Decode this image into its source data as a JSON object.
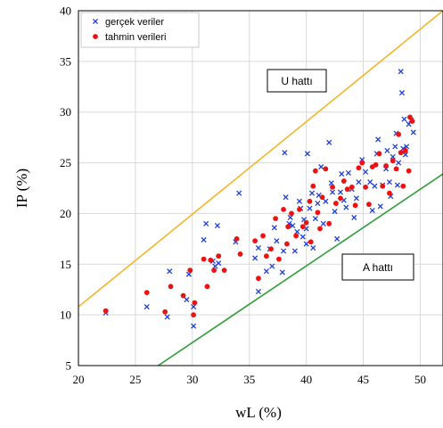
{
  "chart_data": {
    "type": "scatter",
    "xlabel": "wL (%)",
    "ylabel": "IP (%)",
    "xlim": [
      20,
      52
    ],
    "ylim": [
      5,
      40
    ],
    "x_ticks": [
      20,
      25,
      30,
      35,
      40,
      45,
      50
    ],
    "y_ticks": [
      5,
      10,
      15,
      20,
      25,
      30,
      35,
      40
    ],
    "grid": true,
    "legend_position": "top-left",
    "series": [
      {
        "name": "gerçek veriler",
        "marker": "x",
        "color": "#1f3fd6",
        "points": [
          [
            22.4,
            10.2
          ],
          [
            26,
            10.8
          ],
          [
            27.8,
            9.8
          ],
          [
            28,
            14.3
          ],
          [
            29.5,
            11.5
          ],
          [
            29.7,
            14
          ],
          [
            30.1,
            10.8
          ],
          [
            30.1,
            8.9
          ],
          [
            31,
            17.4
          ],
          [
            31.2,
            19
          ],
          [
            31.8,
            15.3
          ],
          [
            32.2,
            18.8
          ],
          [
            32.3,
            15.1
          ],
          [
            32,
            14.8
          ],
          [
            33.8,
            17.2
          ],
          [
            34.1,
            22
          ],
          [
            35.5,
            15.6
          ],
          [
            35.8,
            12.3
          ],
          [
            35.8,
            16.6
          ],
          [
            36.5,
            14.3
          ],
          [
            36.8,
            16.5
          ],
          [
            37,
            14.8
          ],
          [
            37.2,
            18.6
          ],
          [
            37.4,
            17.3
          ],
          [
            37.9,
            14.2
          ],
          [
            38,
            16.3
          ],
          [
            38.1,
            26
          ],
          [
            38.2,
            21.6
          ],
          [
            38.5,
            19
          ],
          [
            38.6,
            19.6
          ],
          [
            38.8,
            18.8
          ],
          [
            39,
            16.3
          ],
          [
            39.2,
            18.2
          ],
          [
            39.4,
            21.2
          ],
          [
            39.5,
            20.5
          ],
          [
            39.7,
            17.7
          ],
          [
            39.8,
            19.4
          ],
          [
            40,
            18.5
          ],
          [
            40.1,
            25.9
          ],
          [
            40,
            17
          ],
          [
            40.3,
            20.5
          ],
          [
            40.5,
            22
          ],
          [
            40.6,
            16.6
          ],
          [
            40.8,
            19.5
          ],
          [
            41,
            21
          ],
          [
            41.1,
            21.8
          ],
          [
            41.3,
            24.6
          ],
          [
            41.5,
            19
          ],
          [
            41.7,
            21.2
          ],
          [
            42,
            27
          ],
          [
            42.2,
            23
          ],
          [
            42.3,
            22.1
          ],
          [
            42.5,
            20.2
          ],
          [
            42.7,
            17.5
          ],
          [
            43,
            22.1
          ],
          [
            43.1,
            23.9
          ],
          [
            43.3,
            21.3
          ],
          [
            43.5,
            20.6
          ],
          [
            43.7,
            24
          ],
          [
            44,
            22.4
          ],
          [
            44.2,
            19.6
          ],
          [
            44.4,
            21.5
          ],
          [
            44.6,
            23.1
          ],
          [
            44.9,
            25.3
          ],
          [
            45.2,
            24.1
          ],
          [
            45.6,
            23.1
          ],
          [
            45.8,
            20.3
          ],
          [
            46,
            22.7
          ],
          [
            46.2,
            25.9
          ],
          [
            46.3,
            27.3
          ],
          [
            46.5,
            20.7
          ],
          [
            46.7,
            22.8
          ],
          [
            47,
            24.4
          ],
          [
            47.1,
            26.2
          ],
          [
            47.3,
            23.1
          ],
          [
            47.4,
            21.7
          ],
          [
            47.6,
            25.6
          ],
          [
            47.8,
            26.6
          ],
          [
            47.9,
            27.9
          ],
          [
            48,
            22.8
          ],
          [
            48.1,
            25
          ],
          [
            48.3,
            34
          ],
          [
            48.4,
            31.9
          ],
          [
            48.5,
            26.4
          ],
          [
            48.6,
            29.3
          ],
          [
            48.7,
            25.8
          ],
          [
            48.8,
            26.6
          ],
          [
            49,
            28.8
          ],
          [
            49.2,
            29.2
          ],
          [
            49.4,
            28
          ]
        ]
      },
      {
        "name": "tahmin verileri",
        "marker": "circle",
        "color": "#ee1111",
        "points": [
          [
            22.4,
            10.4
          ],
          [
            26,
            12.2
          ],
          [
            27.6,
            10.3
          ],
          [
            28.1,
            12.8
          ],
          [
            29.2,
            11.9
          ],
          [
            29.8,
            14.4
          ],
          [
            30.1,
            10
          ],
          [
            30.2,
            11.2
          ],
          [
            31,
            15.5
          ],
          [
            31.3,
            12.8
          ],
          [
            31.6,
            15.4
          ],
          [
            31.9,
            14.4
          ],
          [
            32.3,
            15.8
          ],
          [
            32.8,
            14.4
          ],
          [
            33.9,
            17.5
          ],
          [
            34.2,
            16
          ],
          [
            35.5,
            17.3
          ],
          [
            35.8,
            13.6
          ],
          [
            36.2,
            17.8
          ],
          [
            36.5,
            15.8
          ],
          [
            36.9,
            16.5
          ],
          [
            37.3,
            19.5
          ],
          [
            37.6,
            15.5
          ],
          [
            38,
            20.4
          ],
          [
            38.3,
            17
          ],
          [
            38.4,
            18.7
          ],
          [
            38.7,
            20
          ],
          [
            39.1,
            17.8
          ],
          [
            39.4,
            20.4
          ],
          [
            39.7,
            18.7
          ],
          [
            40,
            19.1
          ],
          [
            40.3,
            21.2
          ],
          [
            40.4,
            17.2
          ],
          [
            40.6,
            22.7
          ],
          [
            40.8,
            24.2
          ],
          [
            41,
            20.1
          ],
          [
            41.2,
            18.5
          ],
          [
            41.4,
            21.6
          ],
          [
            41.7,
            24.4
          ],
          [
            42,
            19
          ],
          [
            42.3,
            22.6
          ],
          [
            42.6,
            21
          ],
          [
            43,
            21.5
          ],
          [
            43.3,
            23.2
          ],
          [
            43.6,
            22.4
          ],
          [
            44,
            22.6
          ],
          [
            44.3,
            20.8
          ],
          [
            44.6,
            24.5
          ],
          [
            44.9,
            25
          ],
          [
            45.2,
            22.6
          ],
          [
            45.5,
            20.9
          ],
          [
            45.8,
            24.6
          ],
          [
            46.1,
            24.8
          ],
          [
            46.4,
            25.9
          ],
          [
            46.7,
            22.7
          ],
          [
            47,
            24.7
          ],
          [
            47.3,
            22
          ],
          [
            47.6,
            25.2
          ],
          [
            47.9,
            24.4
          ],
          [
            48.1,
            27.8
          ],
          [
            48.3,
            26
          ],
          [
            48.5,
            22.7
          ],
          [
            48.7,
            26.2
          ],
          [
            49,
            24.2
          ],
          [
            49.1,
            29.5
          ],
          [
            49.3,
            29.1
          ]
        ]
      }
    ],
    "reference_lines": [
      {
        "label": "U hattı",
        "color": "#f5b52a",
        "from": [
          20,
          10.8
        ],
        "to": [
          52,
          40
        ]
      },
      {
        "label": "A hattı",
        "color": "#2e9e3a",
        "from": [
          27,
          5
        ],
        "to": [
          52,
          23.9
        ]
      }
    ]
  },
  "annotations": {
    "u_line_label": "U hattı",
    "a_line_label": "A hattı"
  }
}
